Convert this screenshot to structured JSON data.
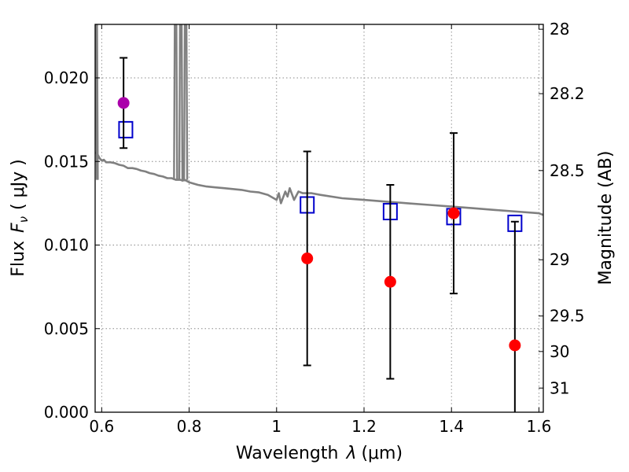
{
  "chart_data": {
    "type": "scatter",
    "xlabel": {
      "prefix": "Wavelength",
      "symbol": "λ",
      "unit": "(μm)"
    },
    "ylabel": {
      "prefix": "Flux",
      "symbol": "F",
      "subscript": "ν",
      "unit": "( μJy )"
    },
    "y2label": "Magnitude (AB)",
    "xlim": [
      0.585,
      1.61
    ],
    "ylim": [
      0.0,
      0.0232
    ],
    "grid": true,
    "x_ticks": [
      {
        "value": 0.6,
        "label": "0.6"
      },
      {
        "value": 0.8,
        "label": "0.8"
      },
      {
        "value": 1.0,
        "label": "1"
      },
      {
        "value": 1.2,
        "label": "1.2"
      },
      {
        "value": 1.4,
        "label": "1.4"
      },
      {
        "value": 1.6,
        "label": "1.6"
      }
    ],
    "y_ticks": [
      {
        "value": 0.0,
        "label": "0.000"
      },
      {
        "value": 0.005,
        "label": "0.005"
      },
      {
        "value": 0.01,
        "label": "0.010"
      },
      {
        "value": 0.015,
        "label": "0.015"
      },
      {
        "value": 0.02,
        "label": "0.020"
      }
    ],
    "y2_ticks": [
      {
        "mag": 28,
        "label": "28"
      },
      {
        "mag": 28.2,
        "label": "28.2"
      },
      {
        "mag": 28.5,
        "label": "28.5"
      },
      {
        "mag": 29,
        "label": "29"
      },
      {
        "mag": 29.5,
        "label": "29.5"
      },
      {
        "mag": 30,
        "label": "30"
      },
      {
        "mag": 31,
        "label": "31"
      }
    ],
    "colors": {
      "model": "#808080",
      "observed": "#ff0000",
      "observed_optical": "#aa00aa",
      "model_photometry": "#0000cc",
      "errorbar": "#000000",
      "grid": "#888888"
    },
    "model_spectrum": {
      "x": [
        0.585,
        0.59,
        0.595,
        0.6,
        0.605,
        0.61,
        0.62,
        0.63,
        0.64,
        0.65,
        0.66,
        0.67,
        0.68,
        0.69,
        0.7,
        0.71,
        0.72,
        0.73,
        0.74,
        0.75,
        0.76,
        0.77,
        0.775,
        0.78,
        0.785,
        0.79,
        0.8,
        0.82,
        0.84,
        0.86,
        0.88,
        0.9,
        0.92,
        0.94,
        0.96,
        0.98,
        1.0,
        1.005,
        1.01,
        1.02,
        1.025,
        1.03,
        1.04,
        1.05,
        1.06,
        1.08,
        1.1,
        1.15,
        1.2,
        1.25,
        1.3,
        1.35,
        1.4,
        1.45,
        1.5,
        1.55,
        1.6,
        1.61
      ],
      "y": [
        0.01555,
        0.01545,
        0.0152,
        0.01505,
        0.0151,
        0.01495,
        0.01495,
        0.0149,
        0.0148,
        0.01475,
        0.0146,
        0.0146,
        0.01455,
        0.01445,
        0.0144,
        0.0143,
        0.01425,
        0.01415,
        0.0141,
        0.014,
        0.014,
        0.0139,
        0.0139,
        0.0139,
        0.01385,
        0.0139,
        0.01375,
        0.0136,
        0.0135,
        0.01345,
        0.0134,
        0.01335,
        0.0133,
        0.0132,
        0.01315,
        0.013,
        0.0127,
        0.0131,
        0.0125,
        0.0132,
        0.0129,
        0.0134,
        0.0127,
        0.0132,
        0.0131,
        0.0131,
        0.013,
        0.0128,
        0.0127,
        0.0126,
        0.0125,
        0.0124,
        0.0123,
        0.0122,
        0.0121,
        0.012,
        0.0119,
        0.0118
      ]
    },
    "emission_spikes": [
      {
        "x": 0.5855
      },
      {
        "x": 0.5875
      },
      {
        "x": 0.769
      },
      {
        "x": 0.781
      },
      {
        "x": 0.792
      }
    ],
    "observed": [
      {
        "x": 0.65,
        "y": 0.0185,
        "err": 0.0027,
        "color_key": "observed_optical"
      },
      {
        "x": 1.07,
        "y": 0.0092,
        "err": 0.0064,
        "color_key": "observed"
      },
      {
        "x": 1.26,
        "y": 0.0078,
        "err": 0.0058,
        "color_key": "observed"
      },
      {
        "x": 1.405,
        "y": 0.0119,
        "err": 0.0048,
        "color_key": "observed"
      },
      {
        "x": 1.545,
        "y": 0.004,
        "err": 0.0074,
        "color_key": "observed"
      }
    ],
    "model_photometry": [
      {
        "x": 0.655,
        "y": 0.0169
      },
      {
        "x": 1.07,
        "y": 0.0124
      },
      {
        "x": 1.26,
        "y": 0.012
      },
      {
        "x": 1.405,
        "y": 0.0117
      },
      {
        "x": 1.545,
        "y": 0.0113
      }
    ]
  }
}
